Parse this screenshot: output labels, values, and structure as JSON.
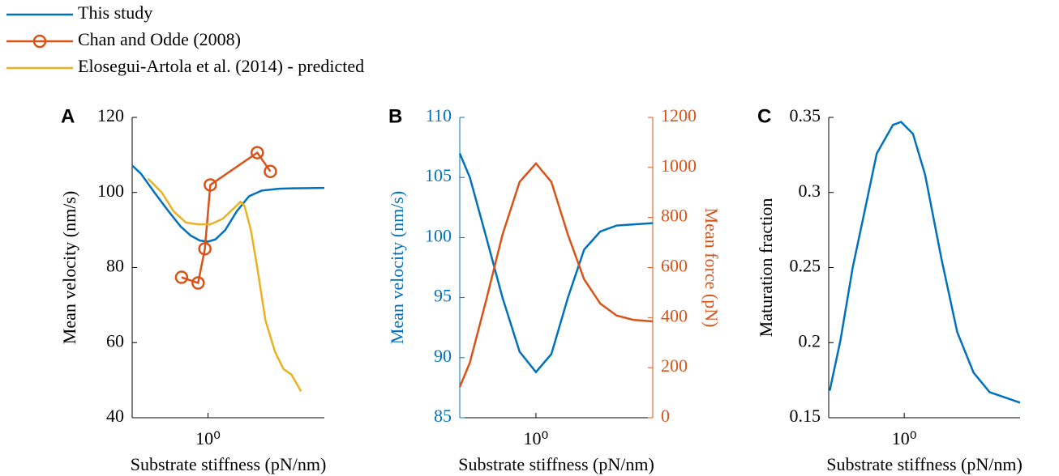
{
  "chart_data": [
    {
      "type": "line",
      "panel_label": "A",
      "xlabel": "Substrate stiffness (pN/nm)",
      "ylabel": "Mean velocity (nm/s)",
      "xscale": "log",
      "xlim": [
        0.375,
        4.5
      ],
      "xticks": [
        {
          "value": 1,
          "label": "10⁰"
        }
      ],
      "ylim": [
        40,
        120
      ],
      "yticks": [
        40,
        60,
        80,
        100,
        120
      ],
      "legend": "top-left",
      "series": [
        {
          "name": "This study",
          "color": "#0072BD",
          "x": [
            0.375,
            0.42,
            0.5,
            0.6,
            0.7,
            0.8,
            0.9,
            1.0,
            1.1,
            1.25,
            1.45,
            1.7,
            2.0,
            2.5,
            3.0,
            4.5
          ],
          "values": [
            107.2,
            105,
            100,
            95,
            91,
            88.5,
            87.2,
            86.9,
            87.5,
            90,
            95,
            99,
            100.5,
            101,
            101.1,
            101.2
          ]
        },
        {
          "name": "Chan and Odde (2008)",
          "color": "#D95319",
          "marker": "circle",
          "x": [
            0.71,
            0.88,
            0.96,
            1.03,
            1.89,
            2.24
          ],
          "values": [
            77.4,
            75.9,
            85,
            102,
            110.6,
            105.6
          ]
        },
        {
          "name": "Elosegui-Artola et al. (2014) - predicted",
          "color": "#EDB120",
          "x": [
            0.46,
            0.55,
            0.64,
            0.75,
            0.88,
            1.03,
            1.21,
            1.41,
            1.52,
            1.6,
            1.74,
            1.89,
            2.1,
            2.38,
            2.65,
            2.94,
            3.33
          ],
          "values": [
            103.7,
            100,
            95,
            92,
            91.5,
            91.5,
            93,
            96,
            97.5,
            96.5,
            90,
            80,
            66,
            57.5,
            53,
            51.5,
            47
          ]
        }
      ]
    },
    {
      "type": "line",
      "panel_label": "B",
      "xlabel": "Substrate stiffness (pN/nm)",
      "ylabel": "Mean velocity (nm/s)",
      "y2label": "Mean force (pN)",
      "xscale": "log",
      "xlim": [
        0.375,
        4.5
      ],
      "xticks": [
        {
          "value": 1,
          "label": "10⁰"
        }
      ],
      "ylim": [
        85,
        110
      ],
      "yticks": [
        85,
        90,
        95,
        100,
        105,
        110
      ],
      "ycolor": "#0072BD",
      "y2lim": [
        0,
        1200
      ],
      "y2ticks": [
        0,
        200,
        400,
        600,
        800,
        1000,
        1200
      ],
      "y2color": "#D95319",
      "series": [
        {
          "color": "#0072BD",
          "x": [
            0.375,
            0.427,
            0.528,
            0.65,
            0.81,
            1.0,
            1.22,
            1.51,
            1.86,
            2.29,
            2.83,
            4.5
          ],
          "values": [
            107,
            105,
            100,
            95,
            90.5,
            88.8,
            90.3,
            95,
            99,
            100.5,
            101,
            101.2
          ]
        },
        {
          "color": "#D95319",
          "axis": "y2",
          "x": [
            0.375,
            0.427,
            0.528,
            0.65,
            0.81,
            1.0,
            1.22,
            1.51,
            1.86,
            2.29,
            2.83,
            3.5,
            4.5
          ],
          "values": [
            123,
            220,
            472,
            731,
            942,
            1016,
            942,
            731,
            553,
            456,
            408,
            391,
            385
          ]
        }
      ]
    },
    {
      "type": "line",
      "panel_label": "C",
      "xlabel": "Substrate stiffness (pN/nm)",
      "ylabel": "Maturation fraction",
      "xscale": "log",
      "xlim": [
        0.375,
        4.5
      ],
      "xticks": [
        {
          "value": 1,
          "label": "10⁰"
        }
      ],
      "ylim": [
        0.15,
        0.35
      ],
      "yticks": [
        0.15,
        0.2,
        0.25,
        0.3,
        0.35
      ],
      "series": [
        {
          "color": "#0072BD",
          "x": [
            0.38,
            0.437,
            0.512,
            0.599,
            0.7,
            0.864,
            0.96,
            1.12,
            1.31,
            1.62,
            1.99,
            2.46,
            3.03,
            4.5
          ],
          "values": [
            0.168,
            0.2017,
            0.25,
            0.288,
            0.326,
            0.345,
            0.347,
            0.339,
            0.312,
            0.256,
            0.207,
            0.18,
            0.167,
            0.16
          ]
        }
      ]
    }
  ]
}
